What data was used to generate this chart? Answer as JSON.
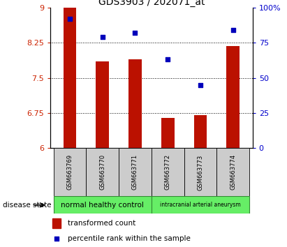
{
  "title": "GDS3903 / 202071_at",
  "samples": [
    "GSM663769",
    "GSM663770",
    "GSM663771",
    "GSM663772",
    "GSM663773",
    "GSM663774"
  ],
  "bar_values": [
    9.0,
    7.85,
    7.9,
    6.65,
    6.7,
    8.17
  ],
  "percentile_values": [
    92,
    79,
    82,
    63,
    45,
    84
  ],
  "ylim_left": [
    6,
    9
  ],
  "ylim_right": [
    0,
    100
  ],
  "yticks_left": [
    6,
    6.75,
    7.5,
    8.25,
    9
  ],
  "yticks_right": [
    0,
    25,
    50,
    75,
    100
  ],
  "ytick_labels_left": [
    "6",
    "6.75",
    "7.5",
    "8.25",
    "9"
  ],
  "ytick_labels_right": [
    "0",
    "25",
    "50",
    "75",
    "100%"
  ],
  "bar_color": "#BB1100",
  "scatter_color": "#0000BB",
  "bar_bottom": 6,
  "group1_indices": [
    0,
    1,
    2
  ],
  "group1_label": "normal healthy control",
  "group1_color": "#66EE66",
  "group2_indices": [
    3,
    4,
    5
  ],
  "group2_label": "intracranial arterial aneurysm",
  "group2_color": "#66EE66",
  "group_label": "disease state",
  "legend_bar_label": "transformed count",
  "legend_scatter_label": "percentile rank within the sample",
  "tick_color_left": "#CC2200",
  "tick_color_right": "#0000CC",
  "hgrid_ticks": [
    6.75,
    7.5,
    8.25
  ],
  "plot_bg": "#ffffff",
  "sample_box_color": "#cccccc",
  "bar_width": 0.4
}
